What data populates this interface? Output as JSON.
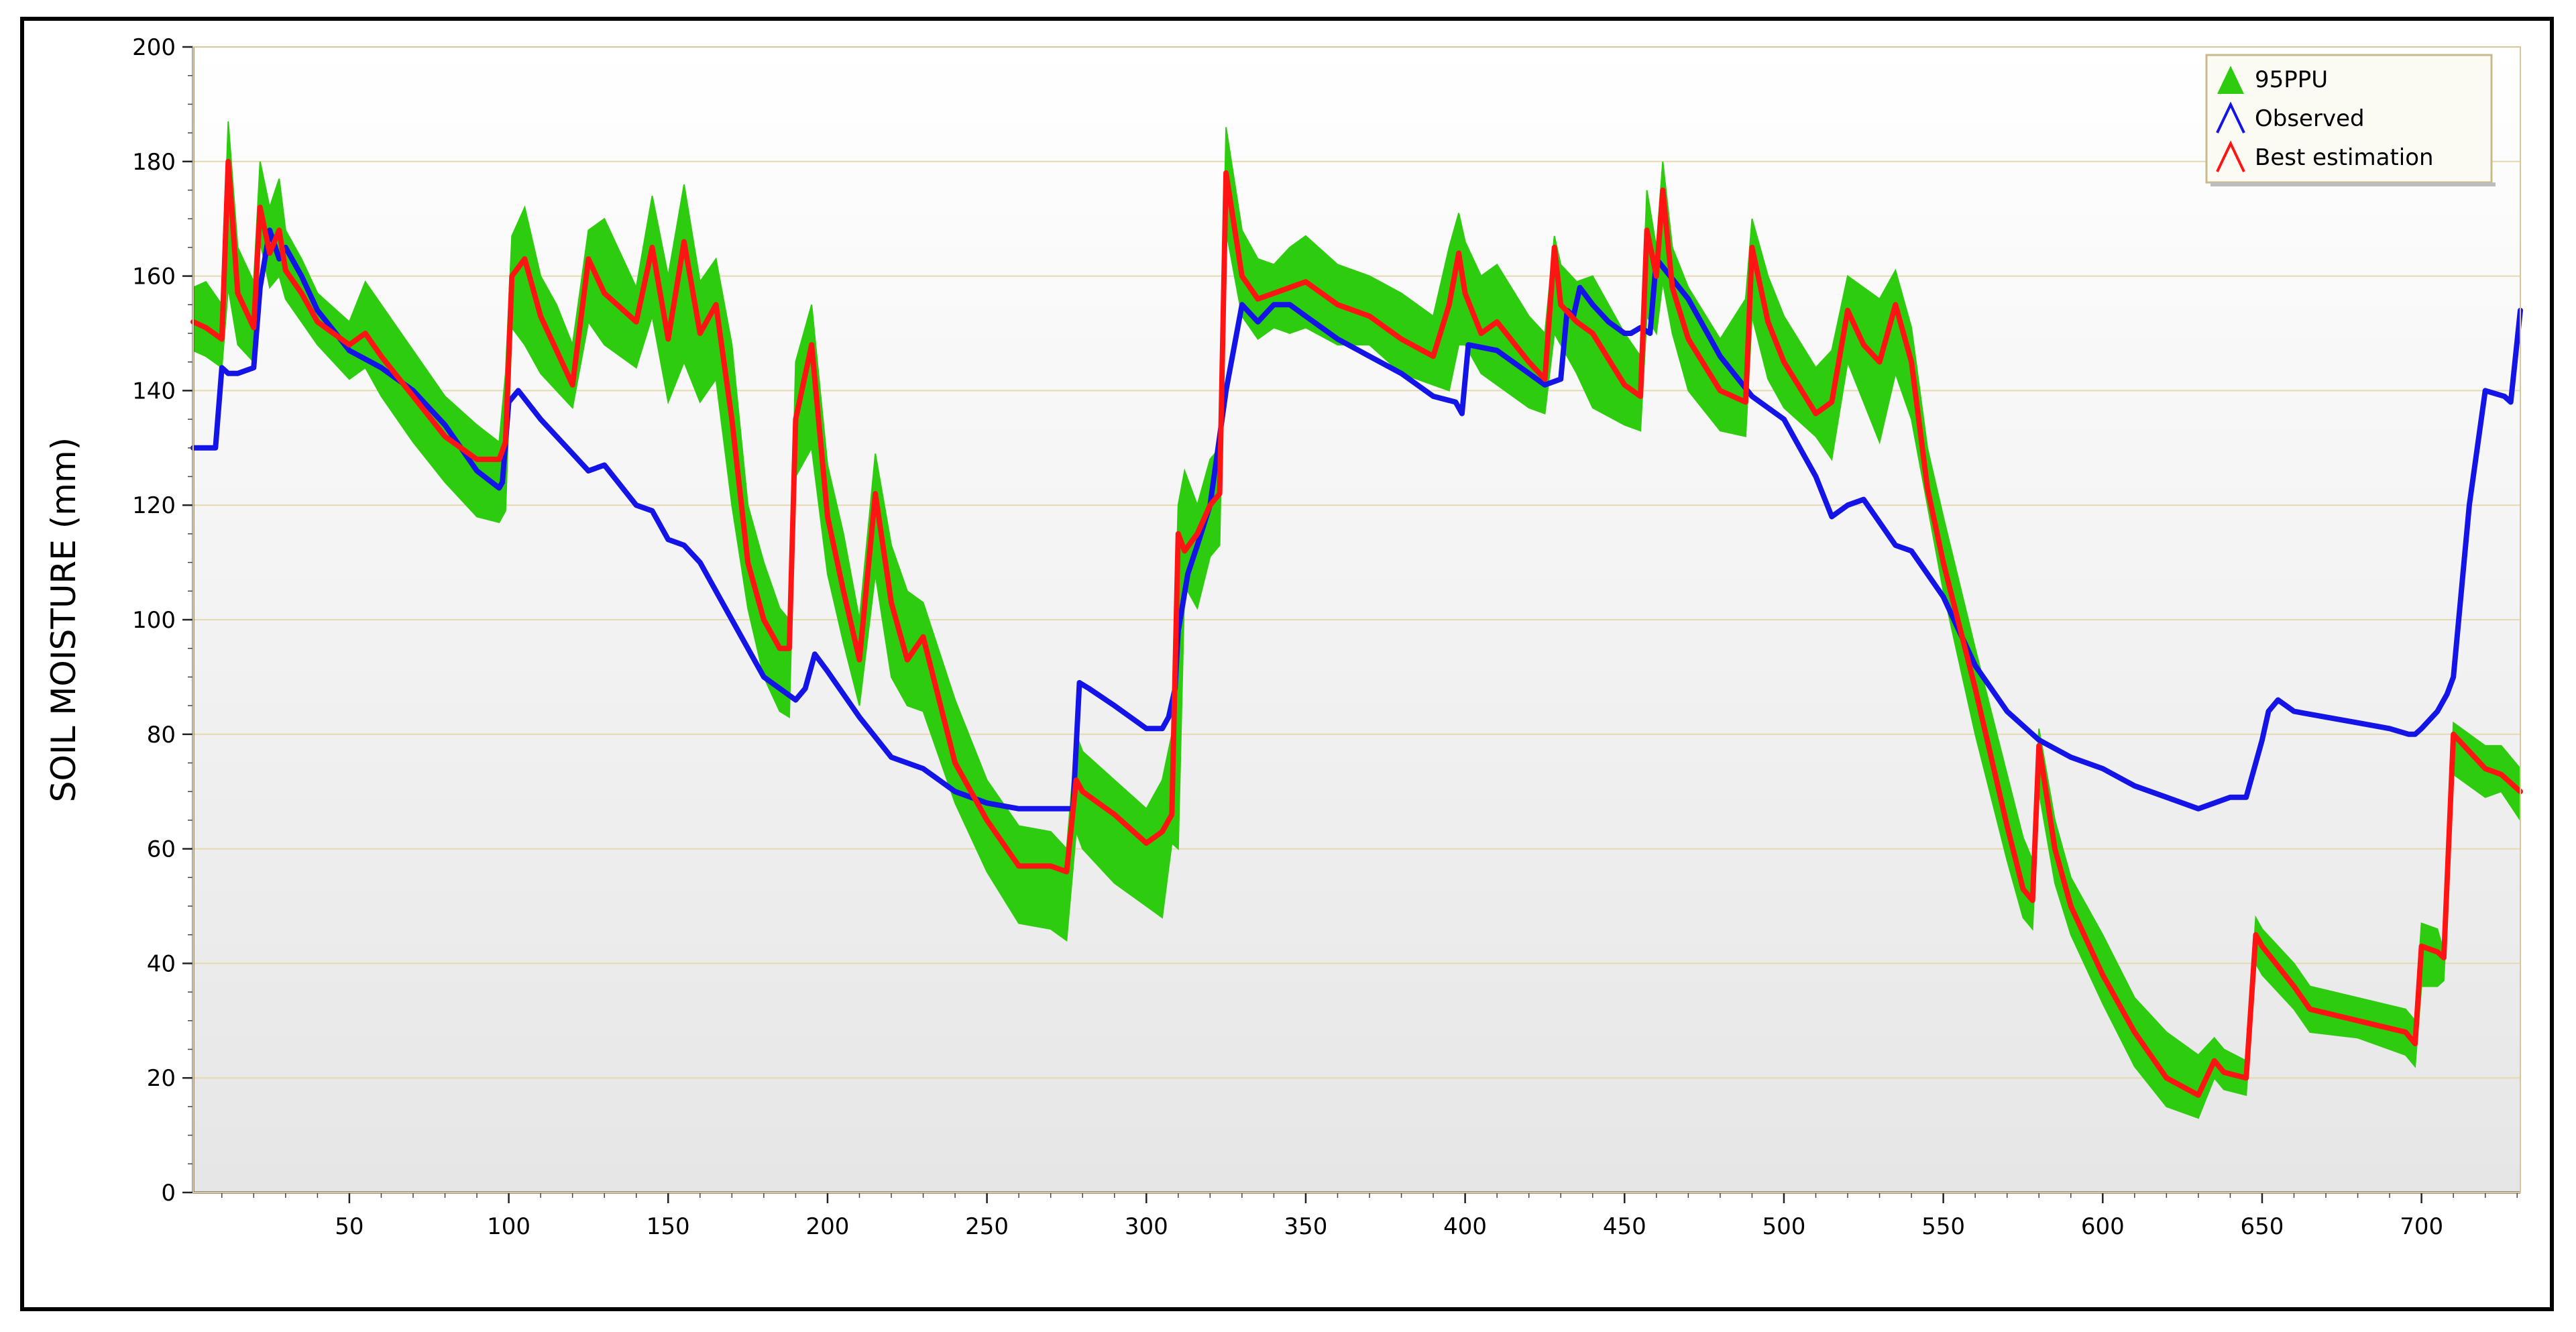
{
  "chart_data": {
    "type": "line",
    "title": "",
    "xlabel": "",
    "ylabel": "SOIL MOISTURE (mm)",
    "xlim": [
      1,
      731
    ],
    "ylim": [
      0,
      200
    ],
    "x_ticks": [
      50,
      100,
      150,
      200,
      250,
      300,
      350,
      400,
      450,
      500,
      550,
      600,
      650,
      700
    ],
    "y_ticks": [
      0,
      20,
      40,
      60,
      80,
      100,
      120,
      140,
      160,
      180,
      200
    ],
    "grid": "horizontal",
    "legend_position": "top-right",
    "colors": {
      "band": "#2ecc0e",
      "observed": "#1414e6",
      "best": "#ff1414",
      "grid": "#e6d8b0",
      "plot_top": "#ffffff",
      "plot_bottom": "#e6e6e6"
    },
    "series": [
      {
        "name": "95PPU",
        "kind": "band",
        "x": [
          1,
          5,
          10,
          12,
          15,
          20,
          22,
          25,
          28,
          30,
          35,
          40,
          50,
          55,
          60,
          70,
          80,
          90,
          97,
          99,
          101,
          105,
          110,
          115,
          120,
          125,
          130,
          140,
          145,
          150,
          155,
          160,
          165,
          170,
          175,
          180,
          185,
          188,
          190,
          195,
          200,
          205,
          210,
          215,
          220,
          225,
          230,
          240,
          250,
          260,
          270,
          275,
          278,
          280,
          290,
          300,
          305,
          308,
          310,
          312,
          316,
          320,
          323,
          325,
          330,
          335,
          340,
          345,
          350,
          360,
          370,
          380,
          390,
          395,
          398,
          400,
          405,
          410,
          420,
          425,
          428,
          430,
          435,
          440,
          450,
          455,
          457,
          460,
          462,
          465,
          470,
          480,
          488,
          490,
          495,
          500,
          510,
          515,
          520,
          525,
          530,
          535,
          540,
          545,
          550,
          560,
          570,
          575,
          578,
          580,
          585,
          590,
          600,
          610,
          620,
          630,
          635,
          638,
          645,
          648,
          650,
          660,
          665,
          680,
          695,
          698,
          700,
          705,
          707,
          710,
          720,
          725,
          731
        ],
        "lower": [
          147,
          146,
          144,
          158,
          148,
          145,
          166,
          158,
          160,
          156,
          152,
          148,
          142,
          144,
          139,
          131,
          124,
          118,
          117,
          119,
          151,
          148,
          143,
          140,
          137,
          152,
          148,
          144,
          153,
          138,
          145,
          138,
          142,
          120,
          102,
          90,
          84,
          83,
          125,
          130,
          108,
          96,
          85,
          108,
          90,
          85,
          84,
          68,
          56,
          47,
          46,
          44,
          63,
          60,
          54,
          50,
          48,
          61,
          60,
          106,
          102,
          111,
          113,
          168,
          153,
          149,
          151,
          150,
          151,
          148,
          148,
          143,
          141,
          140,
          148,
          148,
          143,
          141,
          137,
          136,
          150,
          148,
          143,
          137,
          134,
          133,
          153,
          150,
          159,
          150,
          140,
          133,
          132,
          153,
          142,
          137,
          132,
          128,
          145,
          138,
          131,
          143,
          135,
          120,
          105,
          80,
          58,
          48,
          46,
          70,
          54,
          45,
          33,
          22,
          15,
          13,
          20,
          18,
          17,
          40,
          38,
          32,
          28,
          27,
          24,
          22,
          36,
          36,
          37,
          73,
          69,
          70,
          65
        ],
        "upper": [
          158,
          159,
          155,
          187,
          165,
          159,
          180,
          172,
          177,
          168,
          163,
          157,
          152,
          159,
          155,
          147,
          139,
          134,
          131,
          143,
          167,
          172,
          160,
          155,
          148,
          168,
          170,
          158,
          174,
          160,
          176,
          159,
          163,
          148,
          120,
          110,
          102,
          100,
          145,
          155,
          127,
          115,
          100,
          129,
          113,
          105,
          103,
          86,
          72,
          64,
          63,
          60,
          80,
          77,
          72,
          67,
          72,
          80,
          120,
          126,
          120,
          128,
          130,
          186,
          168,
          163,
          162,
          165,
          167,
          162,
          160,
          157,
          153,
          165,
          171,
          166,
          160,
          162,
          153,
          150,
          167,
          162,
          159,
          160,
          150,
          146,
          175,
          165,
          180,
          165,
          158,
          149,
          156,
          170,
          160,
          153,
          144,
          147,
          160,
          158,
          156,
          161,
          151,
          130,
          118,
          95,
          73,
          62,
          58,
          81,
          65,
          55,
          45,
          34,
          28,
          24,
          27,
          25,
          23,
          48,
          46,
          40,
          36,
          34,
          32,
          30,
          47,
          46,
          42,
          82,
          78,
          78,
          74
        ]
      },
      {
        "name": "Observed",
        "x": [
          1,
          5,
          8,
          10,
          12,
          15,
          20,
          22,
          25,
          28,
          30,
          35,
          40,
          50,
          60,
          70,
          80,
          90,
          97,
          98,
          100,
          103,
          110,
          120,
          125,
          130,
          140,
          145,
          150,
          155,
          160,
          170,
          180,
          190,
          193,
          196,
          200,
          210,
          220,
          230,
          240,
          250,
          260,
          270,
          275,
          277,
          279,
          282,
          290,
          300,
          305,
          307,
          309,
          310,
          313,
          316,
          320,
          325,
          330,
          335,
          340,
          345,
          350,
          360,
          370,
          380,
          390,
          397,
          399,
          401,
          410,
          420,
          425,
          430,
          432,
          434,
          436,
          440,
          445,
          450,
          452,
          455,
          458,
          460,
          470,
          480,
          490,
          500,
          505,
          510,
          515,
          520,
          525,
          530,
          535,
          540,
          545,
          550,
          560,
          570,
          580,
          590,
          600,
          610,
          620,
          630,
          635,
          640,
          645,
          648,
          650,
          652,
          655,
          660,
          670,
          680,
          690,
          696,
          698,
          700,
          705,
          708,
          710,
          715,
          720,
          726,
          728,
          731
        ],
        "y": [
          130,
          130,
          130,
          144,
          143,
          143,
          144,
          158,
          168,
          163,
          165,
          160,
          154,
          147,
          144,
          140,
          134,
          126,
          123,
          124,
          138,
          140,
          135,
          129,
          126,
          127,
          120,
          119,
          114,
          113,
          110,
          100,
          90,
          86,
          88,
          94,
          91,
          83,
          76,
          74,
          70,
          68,
          67,
          67,
          67,
          67,
          89,
          88,
          85,
          81,
          81,
          83,
          88,
          98,
          108,
          113,
          120,
          140,
          155,
          152,
          155,
          155,
          153,
          149,
          146,
          143,
          139,
          138,
          136,
          148,
          147,
          143,
          141,
          142,
          154,
          153,
          158,
          155,
          152,
          150,
          150,
          151,
          150,
          163,
          156,
          146,
          139,
          135,
          130,
          125,
          118,
          120,
          121,
          117,
          113,
          112,
          108,
          104,
          92,
          84,
          79,
          76,
          74,
          71,
          69,
          67,
          68,
          69,
          69,
          75,
          79,
          84,
          86,
          84,
          83,
          82,
          81,
          80,
          80,
          81,
          84,
          87,
          90,
          120,
          140,
          139,
          138,
          154
        ]
      },
      {
        "name": "Best estimation",
        "x": [
          1,
          5,
          10,
          12,
          15,
          20,
          22,
          25,
          28,
          30,
          35,
          40,
          50,
          55,
          60,
          70,
          80,
          90,
          97,
          99,
          101,
          105,
          110,
          115,
          120,
          125,
          130,
          140,
          145,
          150,
          155,
          160,
          165,
          170,
          175,
          180,
          185,
          188,
          190,
          195,
          200,
          205,
          210,
          215,
          220,
          225,
          230,
          240,
          250,
          260,
          270,
          275,
          278,
          280,
          290,
          300,
          305,
          308,
          310,
          312,
          316,
          320,
          323,
          325,
          330,
          335,
          340,
          345,
          350,
          360,
          370,
          380,
          390,
          395,
          398,
          400,
          405,
          410,
          420,
          425,
          428,
          430,
          435,
          440,
          450,
          455,
          457,
          460,
          462,
          465,
          470,
          480,
          488,
          490,
          495,
          500,
          510,
          515,
          520,
          525,
          530,
          535,
          540,
          545,
          550,
          560,
          570,
          575,
          578,
          580,
          585,
          590,
          600,
          610,
          620,
          630,
          635,
          638,
          645,
          648,
          650,
          660,
          665,
          680,
          695,
          698,
          700,
          705,
          707,
          710,
          720,
          725,
          731
        ],
        "y": [
          152,
          151,
          149,
          180,
          157,
          151,
          172,
          164,
          168,
          161,
          157,
          152,
          148,
          150,
          146,
          139,
          132,
          128,
          128,
          131,
          160,
          163,
          153,
          147,
          141,
          163,
          157,
          152,
          165,
          149,
          166,
          150,
          155,
          135,
          110,
          100,
          95,
          95,
          135,
          148,
          118,
          105,
          93,
          122,
          103,
          93,
          97,
          75,
          65,
          57,
          57,
          56,
          72,
          70,
          66,
          61,
          63,
          66,
          115,
          112,
          115,
          120,
          122,
          178,
          160,
          156,
          157,
          158,
          159,
          155,
          153,
          149,
          146,
          155,
          164,
          157,
          150,
          152,
          145,
          142,
          165,
          155,
          152,
          150,
          141,
          139,
          168,
          160,
          175,
          158,
          149,
          140,
          138,
          165,
          152,
          145,
          136,
          138,
          154,
          148,
          145,
          155,
          145,
          123,
          110,
          88,
          64,
          53,
          51,
          78,
          60,
          50,
          38,
          28,
          20,
          17,
          23,
          21,
          20,
          45,
          43,
          36,
          32,
          30,
          28,
          26,
          43,
          42,
          41,
          80,
          74,
          73,
          70
        ]
      }
    ]
  }
}
